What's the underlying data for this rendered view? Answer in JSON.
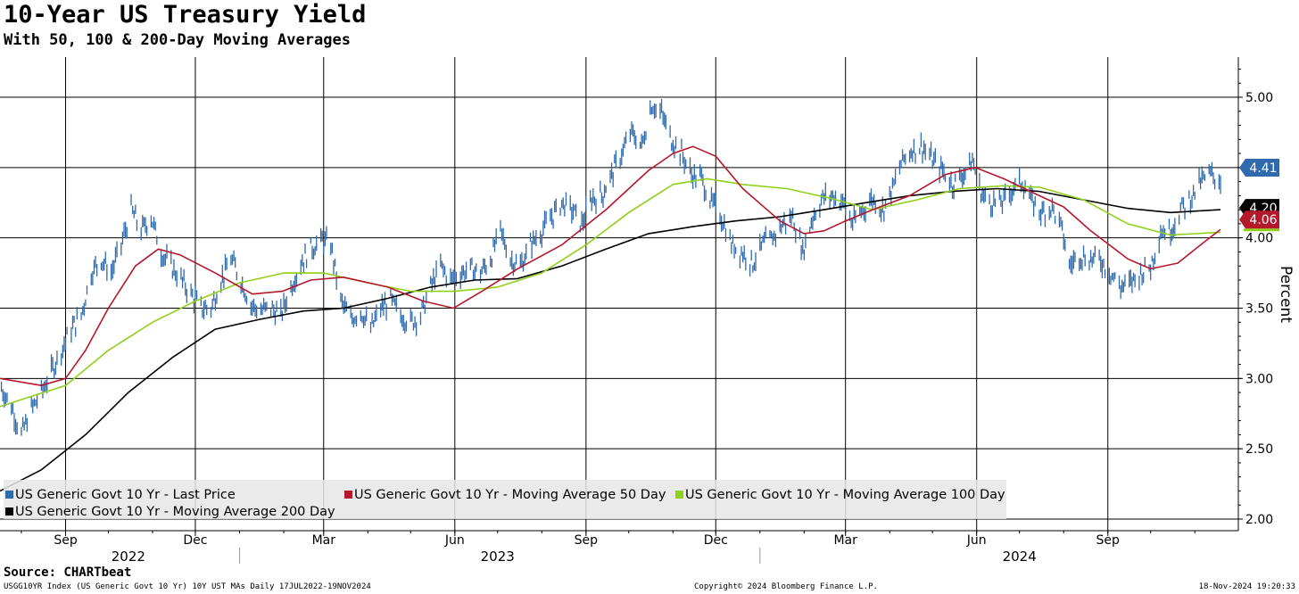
{
  "title": "10-Year US Treasury Yield",
  "subtitle": "With 50, 100 & 200-Day Moving Averages",
  "source": "Source: CHARTbeat",
  "footer": {
    "left": "USGG10YR Index (US Generic Govt 10 Yr) 10Y UST MAs  Daily 17JUL2022-19NOV2024",
    "center": "Copyright© 2024 Bloomberg Finance L.P.",
    "right": "18-Nov-2024 19:20:33"
  },
  "colors": {
    "price": "#2e6aad",
    "ma50": "#b5172b",
    "ma100": "#8ed11a",
    "ma200": "#000000"
  },
  "chart_data": {
    "type": "line",
    "ylabel": "Percent",
    "ylim": [
      2.0,
      5.25
    ],
    "yticks": [
      "2.00",
      "2.50",
      "3.00",
      "3.50",
      "4.00",
      "4.50",
      "5.00"
    ],
    "month_ticks": [
      {
        "label": "Sep",
        "date": "2022-09-01"
      },
      {
        "label": "Dec",
        "date": "2022-12-01"
      },
      {
        "label": "Mar",
        "date": "2023-03-01"
      },
      {
        "label": "Jun",
        "date": "2023-06-01"
      },
      {
        "label": "Sep",
        "date": "2023-09-01"
      },
      {
        "label": "Dec",
        "date": "2023-12-01"
      },
      {
        "label": "Mar",
        "date": "2024-03-01"
      },
      {
        "label": "Jun",
        "date": "2024-06-01"
      },
      {
        "label": "Sep",
        "date": "2024-09-01"
      }
    ],
    "year_labels": [
      {
        "label": "2022",
        "date": "2022-10-15"
      },
      {
        "label": "2023",
        "date": "2023-07-01"
      },
      {
        "label": "2024",
        "date": "2024-07-01"
      }
    ],
    "x_range": [
      "2022-07-17",
      "2024-11-19"
    ],
    "series": [
      {
        "key": "price",
        "legend": "US Generic Govt 10 Yr - Last Price",
        "last": "4.41",
        "points": [
          [
            "2022-07-17",
            2.95
          ],
          [
            "2022-07-25",
            2.8
          ],
          [
            "2022-08-01",
            2.6
          ],
          [
            "2022-08-08",
            2.78
          ],
          [
            "2022-08-15",
            2.9
          ],
          [
            "2022-08-22",
            3.05
          ],
          [
            "2022-08-29",
            3.2
          ],
          [
            "2022-09-05",
            3.35
          ],
          [
            "2022-09-12",
            3.45
          ],
          [
            "2022-09-19",
            3.75
          ],
          [
            "2022-09-26",
            3.85
          ],
          [
            "2022-10-03",
            3.75
          ],
          [
            "2022-10-10",
            3.95
          ],
          [
            "2022-10-17",
            4.2
          ],
          [
            "2022-10-24",
            4.05
          ],
          [
            "2022-10-31",
            4.15
          ],
          [
            "2022-11-07",
            3.9
          ],
          [
            "2022-11-14",
            3.8
          ],
          [
            "2022-11-21",
            3.7
          ],
          [
            "2022-11-28",
            3.6
          ],
          [
            "2022-12-05",
            3.5
          ],
          [
            "2022-12-12",
            3.5
          ],
          [
            "2022-12-19",
            3.7
          ],
          [
            "2022-12-26",
            3.85
          ],
          [
            "2023-01-02",
            3.7
          ],
          [
            "2023-01-09",
            3.52
          ],
          [
            "2023-01-16",
            3.48
          ],
          [
            "2023-01-23",
            3.5
          ],
          [
            "2023-01-30",
            3.45
          ],
          [
            "2023-02-06",
            3.65
          ],
          [
            "2023-02-13",
            3.82
          ],
          [
            "2023-02-20",
            3.92
          ],
          [
            "2023-02-27",
            3.98
          ],
          [
            "2023-03-06",
            3.95
          ],
          [
            "2023-03-13",
            3.55
          ],
          [
            "2023-03-20",
            3.42
          ],
          [
            "2023-03-27",
            3.48
          ],
          [
            "2023-04-03",
            3.35
          ],
          [
            "2023-04-10",
            3.5
          ],
          [
            "2023-04-17",
            3.55
          ],
          [
            "2023-04-24",
            3.45
          ],
          [
            "2023-05-01",
            3.4
          ],
          [
            "2023-05-08",
            3.45
          ],
          [
            "2023-05-15",
            3.65
          ],
          [
            "2023-05-22",
            3.8
          ],
          [
            "2023-05-29",
            3.7
          ],
          [
            "2023-06-05",
            3.75
          ],
          [
            "2023-06-12",
            3.78
          ],
          [
            "2023-06-19",
            3.75
          ],
          [
            "2023-06-26",
            3.85
          ],
          [
            "2023-07-03",
            4.05
          ],
          [
            "2023-07-10",
            3.85
          ],
          [
            "2023-07-17",
            3.8
          ],
          [
            "2023-07-24",
            3.95
          ],
          [
            "2023-08-01",
            4.05
          ],
          [
            "2023-08-08",
            4.15
          ],
          [
            "2023-08-15",
            4.25
          ],
          [
            "2023-08-22",
            4.2
          ],
          [
            "2023-08-29",
            4.1
          ],
          [
            "2023-09-05",
            4.28
          ],
          [
            "2023-09-12",
            4.3
          ],
          [
            "2023-09-19",
            4.45
          ],
          [
            "2023-09-26",
            4.6
          ],
          [
            "2023-10-03",
            4.75
          ],
          [
            "2023-10-10",
            4.65
          ],
          [
            "2023-10-17",
            4.95
          ],
          [
            "2023-10-24",
            4.88
          ],
          [
            "2023-10-31",
            4.7
          ],
          [
            "2023-11-07",
            4.6
          ],
          [
            "2023-11-14",
            4.45
          ],
          [
            "2023-11-21",
            4.42
          ],
          [
            "2023-11-28",
            4.25
          ],
          [
            "2023-12-05",
            4.15
          ],
          [
            "2023-12-12",
            3.95
          ],
          [
            "2023-12-19",
            3.9
          ],
          [
            "2023-12-27",
            3.82
          ],
          [
            "2024-01-03",
            3.95
          ],
          [
            "2024-01-10",
            4.0
          ],
          [
            "2024-01-17",
            4.1
          ],
          [
            "2024-01-24",
            4.15
          ],
          [
            "2024-01-31",
            3.9
          ],
          [
            "2024-02-07",
            4.15
          ],
          [
            "2024-02-14",
            4.28
          ],
          [
            "2024-02-21",
            4.3
          ],
          [
            "2024-02-28",
            4.25
          ],
          [
            "2024-03-06",
            4.1
          ],
          [
            "2024-03-13",
            4.2
          ],
          [
            "2024-03-20",
            4.28
          ],
          [
            "2024-03-27",
            4.2
          ],
          [
            "2024-04-03",
            4.35
          ],
          [
            "2024-04-10",
            4.55
          ],
          [
            "2024-04-17",
            4.63
          ],
          [
            "2024-04-24",
            4.65
          ],
          [
            "2024-05-01",
            4.55
          ],
          [
            "2024-05-08",
            4.48
          ],
          [
            "2024-05-15",
            4.38
          ],
          [
            "2024-05-22",
            4.45
          ],
          [
            "2024-05-29",
            4.55
          ],
          [
            "2024-06-05",
            4.3
          ],
          [
            "2024-06-12",
            4.25
          ],
          [
            "2024-06-19",
            4.25
          ],
          [
            "2024-06-26",
            4.35
          ],
          [
            "2024-07-03",
            4.4
          ],
          [
            "2024-07-10",
            4.25
          ],
          [
            "2024-07-17",
            4.18
          ],
          [
            "2024-07-24",
            4.22
          ],
          [
            "2024-07-31",
            4.05
          ],
          [
            "2024-08-05",
            3.8
          ],
          [
            "2024-08-12",
            3.88
          ],
          [
            "2024-08-19",
            3.85
          ],
          [
            "2024-08-26",
            3.85
          ],
          [
            "2024-09-03",
            3.75
          ],
          [
            "2024-09-10",
            3.65
          ],
          [
            "2024-09-17",
            3.68
          ],
          [
            "2024-09-24",
            3.75
          ],
          [
            "2024-10-01",
            3.8
          ],
          [
            "2024-10-08",
            4.05
          ],
          [
            "2024-10-15",
            4.05
          ],
          [
            "2024-10-22",
            4.2
          ],
          [
            "2024-10-29",
            4.28
          ],
          [
            "2024-11-05",
            4.4
          ],
          [
            "2024-11-12",
            4.45
          ],
          [
            "2024-11-19",
            4.41
          ]
        ]
      },
      {
        "key": "ma50",
        "legend": "US Generic Govt 10 Yr - Moving Average 50 Day",
        "last": "4.06",
        "points": [
          [
            "2022-07-17",
            3.0
          ],
          [
            "2022-08-15",
            2.95
          ],
          [
            "2022-09-01",
            3.0
          ],
          [
            "2022-09-15",
            3.2
          ],
          [
            "2022-10-01",
            3.5
          ],
          [
            "2022-10-20",
            3.8
          ],
          [
            "2022-11-05",
            3.92
          ],
          [
            "2022-11-20",
            3.88
          ],
          [
            "2022-12-15",
            3.75
          ],
          [
            "2023-01-10",
            3.6
          ],
          [
            "2023-01-31",
            3.62
          ],
          [
            "2023-02-20",
            3.7
          ],
          [
            "2023-03-15",
            3.72
          ],
          [
            "2023-04-15",
            3.65
          ],
          [
            "2023-05-10",
            3.55
          ],
          [
            "2023-05-31",
            3.5
          ],
          [
            "2023-06-20",
            3.62
          ],
          [
            "2023-07-15",
            3.78
          ],
          [
            "2023-08-15",
            3.95
          ],
          [
            "2023-09-15",
            4.2
          ],
          [
            "2023-10-15",
            4.48
          ],
          [
            "2023-11-01",
            4.6
          ],
          [
            "2023-11-15",
            4.65
          ],
          [
            "2023-12-01",
            4.58
          ],
          [
            "2023-12-20",
            4.35
          ],
          [
            "2024-01-15",
            4.12
          ],
          [
            "2024-02-01",
            4.03
          ],
          [
            "2024-02-15",
            4.05
          ],
          [
            "2024-03-01",
            4.12
          ],
          [
            "2024-03-20",
            4.2
          ],
          [
            "2024-04-15",
            4.3
          ],
          [
            "2024-05-10",
            4.45
          ],
          [
            "2024-05-31",
            4.5
          ],
          [
            "2024-06-20",
            4.42
          ],
          [
            "2024-07-15",
            4.3
          ],
          [
            "2024-08-01",
            4.22
          ],
          [
            "2024-08-20",
            4.05
          ],
          [
            "2024-09-15",
            3.85
          ],
          [
            "2024-10-01",
            3.78
          ],
          [
            "2024-10-20",
            3.82
          ],
          [
            "2024-11-05",
            3.95
          ],
          [
            "2024-11-19",
            4.06
          ]
        ]
      },
      {
        "key": "ma100",
        "legend": "US Generic Govt 10 Yr - Moving Average 100 Day",
        "last": "",
        "points": [
          [
            "2022-07-17",
            2.8
          ],
          [
            "2022-08-01",
            2.85
          ],
          [
            "2022-09-01",
            2.95
          ],
          [
            "2022-10-01",
            3.2
          ],
          [
            "2022-11-01",
            3.4
          ],
          [
            "2022-12-01",
            3.55
          ],
          [
            "2023-01-01",
            3.68
          ],
          [
            "2023-02-01",
            3.75
          ],
          [
            "2023-03-01",
            3.75
          ],
          [
            "2023-04-01",
            3.68
          ],
          [
            "2023-05-01",
            3.62
          ],
          [
            "2023-06-01",
            3.62
          ],
          [
            "2023-07-01",
            3.65
          ],
          [
            "2023-08-01",
            3.75
          ],
          [
            "2023-09-01",
            3.95
          ],
          [
            "2023-10-01",
            4.18
          ],
          [
            "2023-11-01",
            4.38
          ],
          [
            "2023-11-25",
            4.42
          ],
          [
            "2023-12-20",
            4.38
          ],
          [
            "2024-01-20",
            4.35
          ],
          [
            "2024-02-20",
            4.28
          ],
          [
            "2024-03-20",
            4.2
          ],
          [
            "2024-04-20",
            4.27
          ],
          [
            "2024-05-20",
            4.35
          ],
          [
            "2024-06-20",
            4.37
          ],
          [
            "2024-07-15",
            4.36
          ],
          [
            "2024-08-15",
            4.27
          ],
          [
            "2024-09-15",
            4.1
          ],
          [
            "2024-10-15",
            4.02
          ],
          [
            "2024-11-19",
            4.04
          ]
        ]
      },
      {
        "key": "ma200",
        "legend": "US Generic Govt 10 Yr - Moving Average 200 Day",
        "last": "4.20",
        "points": [
          [
            "2022-07-17",
            2.2
          ],
          [
            "2022-08-15",
            2.35
          ],
          [
            "2022-09-15",
            2.6
          ],
          [
            "2022-10-15",
            2.9
          ],
          [
            "2022-11-15",
            3.15
          ],
          [
            "2022-12-15",
            3.35
          ],
          [
            "2023-01-15",
            3.42
          ],
          [
            "2023-02-15",
            3.48
          ],
          [
            "2023-03-15",
            3.5
          ],
          [
            "2023-04-15",
            3.57
          ],
          [
            "2023-05-15",
            3.65
          ],
          [
            "2023-06-15",
            3.7
          ],
          [
            "2023-07-15",
            3.71
          ],
          [
            "2023-08-15",
            3.8
          ],
          [
            "2023-09-15",
            3.92
          ],
          [
            "2023-10-15",
            4.03
          ],
          [
            "2023-11-15",
            4.08
          ],
          [
            "2023-12-15",
            4.12
          ],
          [
            "2024-01-15",
            4.15
          ],
          [
            "2024-02-15",
            4.2
          ],
          [
            "2024-03-15",
            4.25
          ],
          [
            "2024-04-15",
            4.3
          ],
          [
            "2024-05-15",
            4.33
          ],
          [
            "2024-06-15",
            4.35
          ],
          [
            "2024-07-15",
            4.33
          ],
          [
            "2024-08-15",
            4.27
          ],
          [
            "2024-09-15",
            4.21
          ],
          [
            "2024-10-15",
            4.18
          ],
          [
            "2024-11-19",
            4.2
          ]
        ]
      }
    ]
  }
}
